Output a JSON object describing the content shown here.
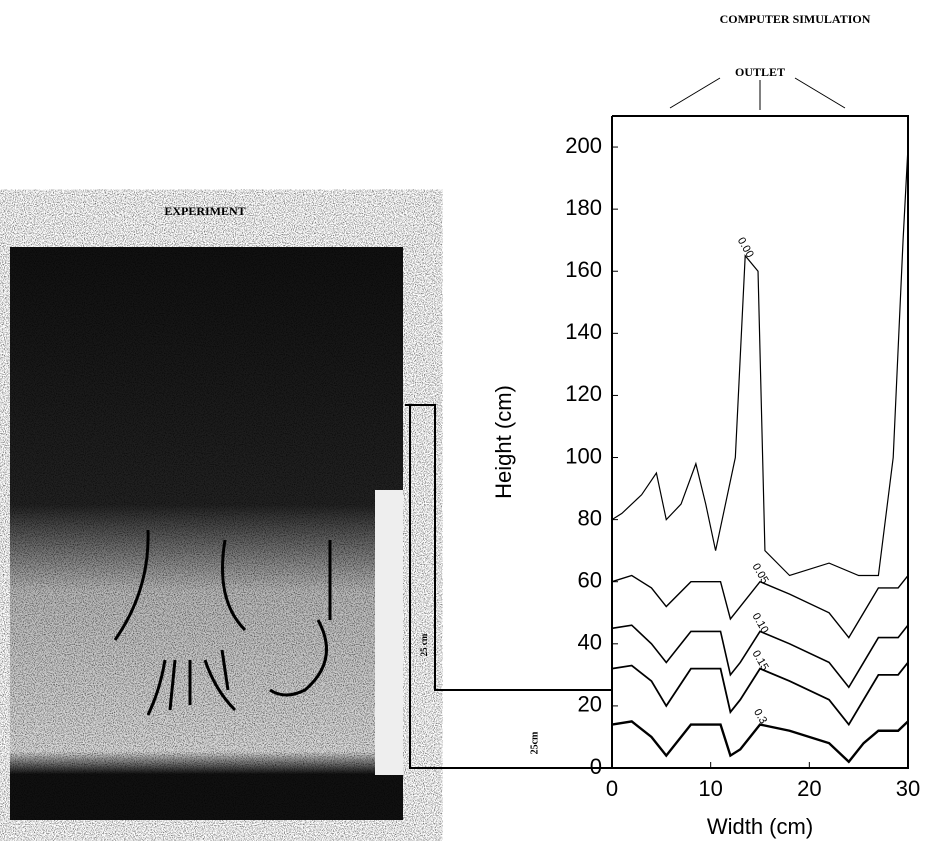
{
  "experiment": {
    "title": "EXPERIMENT",
    "scale_label": "25 cm"
  },
  "chart_data": {
    "type": "contour",
    "title": "COMPUTER SIMULATION",
    "annotation": "OUTLET",
    "depth_label": "25cm",
    "xlabel": "Width (cm)",
    "ylabel": "Height (cm)",
    "xlim": [
      0,
      30
    ],
    "ylim": [
      0,
      210
    ],
    "xticks": [
      0,
      10,
      20,
      30
    ],
    "yticks": [
      0,
      20,
      40,
      60,
      80,
      100,
      120,
      140,
      160,
      180,
      200
    ],
    "color": "#000000",
    "contours": [
      {
        "level": {
          "value": 0,
          "label": "0.00"
        },
        "x": [
          0,
          1,
          3,
          4.5,
          5.5,
          7,
          8.5,
          9.5,
          10.5,
          12.5,
          13.5,
          14.8,
          15.5,
          18,
          22,
          25,
          27,
          28.5,
          29.5,
          30
        ],
        "y": [
          80,
          82,
          88,
          95,
          80,
          85,
          98,
          85,
          70,
          100,
          165,
          160,
          70,
          62,
          66,
          62,
          62,
          100,
          170,
          200
        ]
      },
      {
        "level": {
          "value": 0.05,
          "label": "0.05"
        },
        "x": [
          0,
          2,
          4,
          5.5,
          8,
          11,
          12,
          13,
          15,
          18,
          22,
          24,
          25.5,
          27,
          29,
          30
        ],
        "y": [
          60,
          62,
          58,
          52,
          60,
          60,
          48,
          52,
          60,
          56,
          50,
          42,
          50,
          58,
          58,
          62
        ]
      },
      {
        "level": {
          "value": 0.1,
          "label": "0.10"
        },
        "x": [
          0,
          2,
          4,
          5.5,
          8,
          11,
          12,
          13,
          15,
          18,
          22,
          24,
          25.5,
          27,
          29,
          30
        ],
        "y": [
          45,
          46,
          40,
          34,
          44,
          44,
          30,
          34,
          44,
          40,
          34,
          26,
          34,
          42,
          42,
          46
        ]
      },
      {
        "level": {
          "value": 0.15,
          "label": "0.15"
        },
        "x": [
          0,
          2,
          4,
          5.5,
          8,
          11,
          12,
          13,
          15,
          18,
          22,
          24,
          25.5,
          27,
          29,
          30
        ],
        "y": [
          32,
          33,
          28,
          20,
          32,
          32,
          18,
          22,
          32,
          28,
          22,
          14,
          22,
          30,
          30,
          34
        ]
      },
      {
        "level": {
          "value": 0.3,
          "label": "0.3"
        },
        "x": [
          0,
          2,
          4,
          5.5,
          8,
          11,
          12,
          13,
          15,
          18,
          22,
          24,
          25.5,
          27,
          29,
          30
        ],
        "y": [
          14,
          15,
          10,
          4,
          14,
          14,
          4,
          6,
          14,
          12,
          8,
          2,
          8,
          12,
          12,
          15
        ]
      }
    ]
  }
}
